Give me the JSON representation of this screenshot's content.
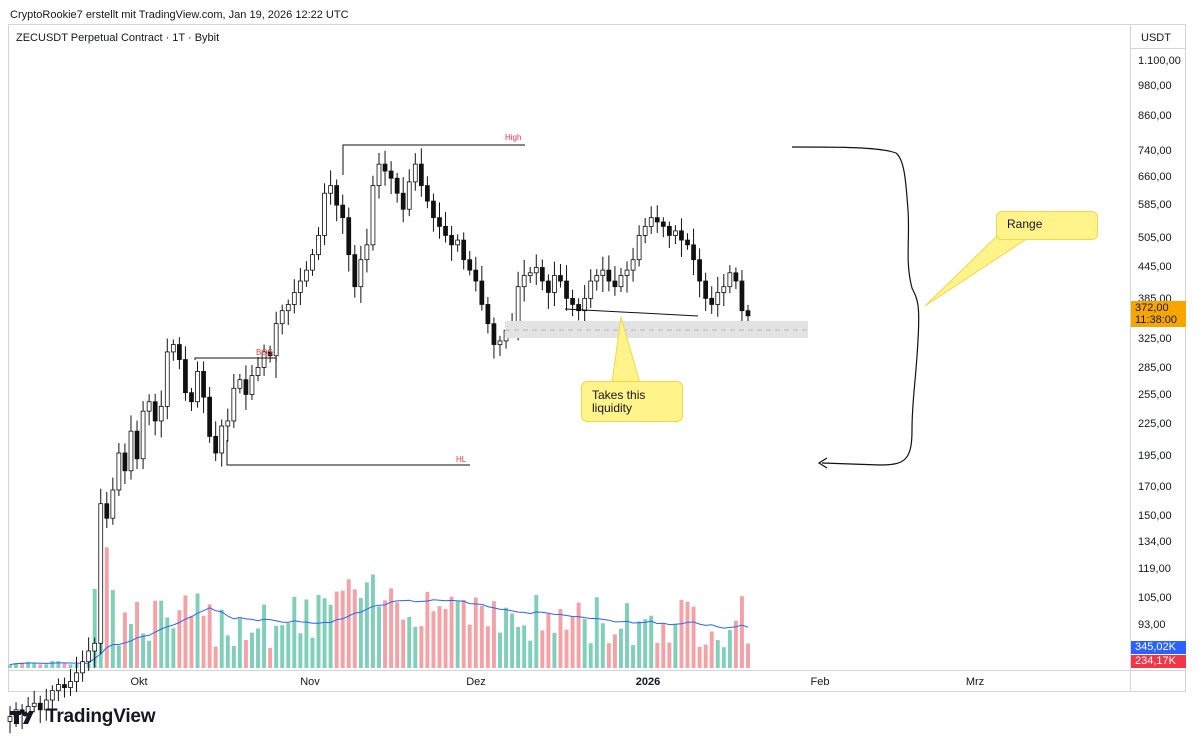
{
  "header": {
    "attribution": "CryptoRookie7 erstellt mit TradingView.com, Jan 19, 2026 12:22 UTC",
    "symbol_line": "ZECUSDT Perpetual Contract · 1T · Bybit",
    "brand": "TradingView"
  },
  "price_axis": {
    "currency": "USDT",
    "labels": [
      "1.100,00",
      "980,00",
      "860,00",
      "740,00",
      "660,00",
      "585,00",
      "505,00",
      "445,00",
      "385,00",
      "325,00",
      "285,00",
      "255,00",
      "225,00",
      "195,00",
      "170,00",
      "150,00",
      "134,00",
      "119,00",
      "105,00",
      "93,00"
    ],
    "current_price": "372,00",
    "countdown": "11:38:00",
    "volume_badge_1": "345,02K",
    "volume_badge_2": "234,17K"
  },
  "time_axis": {
    "labels": [
      "Okt",
      "Nov",
      "Dez",
      "2026",
      "Feb",
      "Mrz"
    ]
  },
  "annotations": {
    "high": "High",
    "bos": "BOS",
    "hl": "HL",
    "range_note": "Range",
    "liquidity_note_line1": "Takes this",
    "liquidity_note_line2": "liquidity"
  },
  "colors": {
    "up": "#111111",
    "down": "#111111",
    "vol_up": "#7fcfb9",
    "vol_down": "#f4a2a6",
    "ma": "#2962ff",
    "label_red": "#f23645",
    "note_bg": "#fff38a",
    "price_badge": "#f7a600"
  },
  "chart_data": {
    "type": "candlestick",
    "title": "ZECUSDT Perpetual Contract · 1T · Bybit",
    "y_scale": "log",
    "ylim": [
      85,
      1150
    ],
    "x_months": [
      "Okt",
      "Nov",
      "Dez",
      "2026",
      "Feb",
      "Mrz"
    ],
    "key_levels": {
      "high": 745,
      "bos": 330,
      "hl": 195,
      "liquidity_zone": [
        335,
        355
      ]
    },
    "closes": [
      70,
      72,
      71,
      73,
      74,
      72,
      75,
      78,
      80,
      79,
      81,
      84,
      88,
      92,
      95,
      170,
      160,
      180,
      210,
      195,
      230,
      205,
      250,
      260,
      240,
      255,
      320,
      330,
      310,
      270,
      260,
      295,
      265,
      225,
      210,
      235,
      240,
      275,
      285,
      268,
      290,
      300,
      320,
      315,
      360,
      380,
      390,
      410,
      430,
      450,
      480,
      520,
      620,
      640,
      590,
      560,
      480,
      420,
      470,
      500,
      640,
      700,
      680,
      660,
      620,
      580,
      650,
      700,
      640,
      600,
      560,
      540,
      520,
      500,
      510,
      470,
      450,
      430,
      390,
      360,
      330,
      335,
      350,
      360,
      420,
      440,
      445,
      455,
      430,
      410,
      440,
      430,
      400,
      390,
      380,
      400,
      430,
      440,
      450,
      430,
      420,
      440,
      450,
      470,
      520,
      540,
      560,
      550,
      540,
      520,
      530,
      510,
      500,
      470,
      430,
      400,
      390,
      410,
      420,
      445,
      430,
      380,
      372
    ],
    "volume_ma_label": "345,02K",
    "volume_label_2": "234,17K"
  }
}
